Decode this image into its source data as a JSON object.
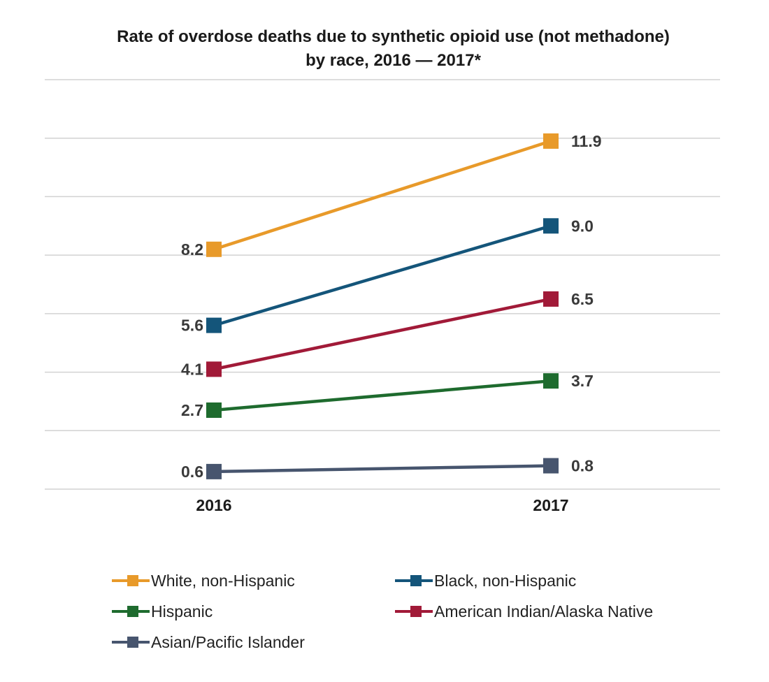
{
  "chart_data": {
    "type": "line",
    "title": "Rate of overdose deaths due to synthetic opioid use (not methadone)",
    "subtitle": "by race, 2016 — 2017*",
    "categories": [
      "2016",
      "2017"
    ],
    "series": [
      {
        "name": "White, non-Hispanic",
        "values": [
          8.2,
          11.9
        ],
        "labels": [
          "8.2",
          "11.9"
        ],
        "color": "#E89A2A"
      },
      {
        "name": "Black, non-Hispanic",
        "values": [
          5.6,
          9.0
        ],
        "labels": [
          "5.6",
          "9.0"
        ],
        "color": "#14557A"
      },
      {
        "name": "American Indian/Alaska Native",
        "values": [
          4.1,
          6.5
        ],
        "labels": [
          "4.1",
          "6.5"
        ],
        "color": "#A11A38"
      },
      {
        "name": "Hispanic",
        "values": [
          2.7,
          3.7
        ],
        "labels": [
          "2.7",
          "3.7"
        ],
        "color": "#1E6B2E"
      },
      {
        "name": "Asian/Pacific Islander",
        "values": [
          0.6,
          0.8
        ],
        "labels": [
          "0.6",
          "0.8"
        ],
        "color": "#47556E"
      }
    ],
    "ylim": [
      0,
      14
    ],
    "grid": true,
    "legend_position": "bottom",
    "legend_order": [
      0,
      1,
      3,
      2,
      4
    ]
  }
}
